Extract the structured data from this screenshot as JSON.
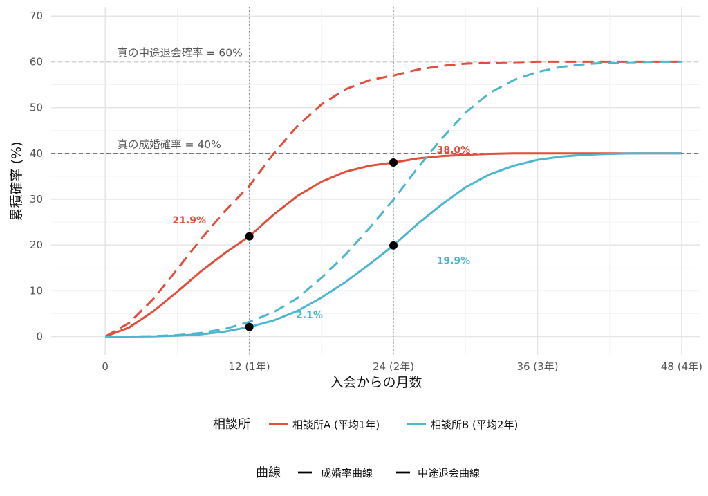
{
  "chart_data": {
    "type": "line",
    "xlabel": "入会からの月数",
    "ylabel": "累積確率 (%)",
    "xlim": [
      -4.5,
      49.5
    ],
    "ylim": [
      -4,
      72
    ],
    "x_ticks": [
      {
        "value": 0,
        "label": "0"
      },
      {
        "value": 12,
        "label": "12 (1年)"
      },
      {
        "value": 24,
        "label": "24 (2年)"
      },
      {
        "value": 36,
        "label": "36 (3年)"
      },
      {
        "value": 48,
        "label": "48 (4年)"
      }
    ],
    "y_ticks": [
      {
        "value": 0,
        "label": "0"
      },
      {
        "value": 10,
        "label": "10"
      },
      {
        "value": 20,
        "label": "20"
      },
      {
        "value": 30,
        "label": "30"
      },
      {
        "value": 40,
        "label": "40"
      },
      {
        "value": 50,
        "label": "50"
      },
      {
        "value": 60,
        "label": "60"
      },
      {
        "value": 70,
        "label": "70"
      }
    ],
    "grid": true,
    "x": [
      0,
      2,
      4,
      6,
      8,
      10,
      12,
      14,
      16,
      18,
      20,
      22,
      24,
      26,
      28,
      30,
      32,
      34,
      36,
      38,
      40,
      42,
      44,
      46,
      48
    ],
    "series": [
      {
        "name": "相談所A (平均1年)",
        "curve": "成婚率曲線",
        "color": "#E24E39",
        "dash": false,
        "values": [
          0,
          2.0,
          5.5,
          9.8,
          14.3,
          18.3,
          21.9,
          26.6,
          30.7,
          33.8,
          36.0,
          37.3,
          38.0,
          38.9,
          39.4,
          39.7,
          39.9,
          40.0,
          40.0,
          40.0,
          40.0,
          40.0,
          40.0,
          40.0,
          40.0
        ]
      },
      {
        "name": "相談所A (平均1年)",
        "curve": "中途退会曲線",
        "color": "#E24E39",
        "dash": true,
        "values": [
          0,
          3.0,
          8.2,
          14.7,
          21.4,
          27.5,
          32.9,
          39.9,
          46.0,
          50.7,
          54.0,
          56.0,
          57.0,
          58.3,
          59.1,
          59.6,
          59.8,
          59.9,
          60.0,
          60.0,
          60.0,
          60.0,
          60.0,
          60.0,
          60.0
        ]
      },
      {
        "name": "相談所B (平均2年)",
        "curve": "成婚率曲線",
        "color": "#4CB6D1",
        "dash": false,
        "values": [
          0,
          0,
          0.05,
          0.2,
          0.5,
          1.1,
          2.1,
          3.5,
          5.6,
          8.5,
          11.9,
          15.8,
          19.9,
          24.6,
          28.8,
          32.6,
          35.4,
          37.3,
          38.6,
          39.3,
          39.7,
          39.9,
          40.0,
          40.0,
          40.0
        ]
      },
      {
        "name": "相談所B (平均2年)",
        "curve": "中途退会曲線",
        "color": "#4CB6D1",
        "dash": true,
        "values": [
          0,
          0,
          0.1,
          0.3,
          0.8,
          1.7,
          3.2,
          5.3,
          8.4,
          12.8,
          17.9,
          23.7,
          29.9,
          36.8,
          43.2,
          48.9,
          53.2,
          56.0,
          57.8,
          58.9,
          59.5,
          59.8,
          59.9,
          60.0,
          60.0
        ]
      }
    ],
    "points": [
      {
        "x": 12,
        "y": 21.9
      },
      {
        "x": 24,
        "y": 38.0
      },
      {
        "x": 12,
        "y": 2.1
      },
      {
        "x": 24,
        "y": 19.9
      }
    ],
    "point_labels": [
      {
        "text": "21.9%",
        "x": 7.0,
        "y": 25.5,
        "color": "#E24E39"
      },
      {
        "text": "38.0%",
        "x": 29.0,
        "y": 40.8,
        "color": "#E24E39"
      },
      {
        "text": "2.1%",
        "x": 17.0,
        "y": 4.8,
        "color": "#4CB6D1"
      },
      {
        "text": "19.9%",
        "x": 29.0,
        "y": 16.6,
        "color": "#4CB6D1"
      }
    ],
    "reference_lines": [
      {
        "y": 60,
        "label": "真の中途退会確率 = 60%",
        "label_x": 1.0
      },
      {
        "y": 40,
        "label": "真の成婚確率 = 40%",
        "label_x": 1.0
      }
    ],
    "vertical_lines": [
      12,
      24
    ],
    "legend_placement": "bottom",
    "legend": {
      "color_title": "相談所",
      "color_items": [
        {
          "label": "相談所A (平均1年)",
          "color": "#E24E39"
        },
        {
          "label": "相談所B (平均2年)",
          "color": "#4CB6D1"
        }
      ],
      "curve_title": "曲線",
      "curve_items": [
        {
          "label": "成婚率曲線"
        },
        {
          "label": "中途退会曲線"
        }
      ]
    }
  }
}
